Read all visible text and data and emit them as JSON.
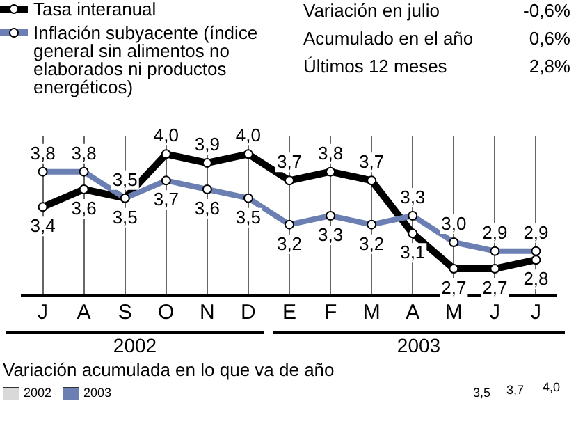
{
  "chart_data": {
    "type": "line",
    "categories": [
      "J",
      "A",
      "S",
      "O",
      "N",
      "D",
      "E",
      "F",
      "M",
      "A",
      "M",
      "J",
      "J"
    ],
    "series": [
      {
        "name": "Tasa interanual",
        "color": "#000000",
        "values": [
          3.4,
          3.6,
          3.5,
          4.0,
          3.9,
          4.0,
          3.7,
          3.8,
          3.7,
          3.1,
          2.7,
          2.7,
          2.8
        ],
        "value_labels": [
          "3,4",
          "3,6",
          "3,5",
          "4,0",
          "3,9",
          "4,0",
          "3,7",
          "3,8",
          "3,7",
          "3,1",
          "2,7",
          "2,7",
          "2,8"
        ]
      },
      {
        "name": "Inflación subyacente (índice general sin alimentos no elaborados ni productos energéticos)",
        "color": "#6b7fb3",
        "values": [
          3.8,
          3.8,
          3.5,
          3.7,
          3.6,
          3.5,
          3.2,
          3.3,
          3.2,
          3.3,
          3.0,
          2.9,
          2.9
        ],
        "value_labels": [
          "3,8",
          "3,8",
          "3,5",
          "3,7",
          "3,6",
          "3,5",
          "3,2",
          "3,3",
          "3,2",
          "3,3",
          "3,0",
          "2,9",
          "2,9"
        ]
      }
    ],
    "ylim": [
      2.4,
      4.2
    ],
    "tick_labels": "x",
    "grid": "x",
    "legend": "top left",
    "marker": "circle",
    "line_style": "solid",
    "annotations": [
      "2002",
      "2003",
      "Variación en julio",
      "-0,6%",
      "Acumulado en el año",
      "0,6%",
      "Últimos 12 meses",
      "2,8%",
      "Variación acumulada en lo que va de año",
      "2002",
      "2003",
      "3,5",
      "3,7",
      "4,0"
    ]
  }
}
